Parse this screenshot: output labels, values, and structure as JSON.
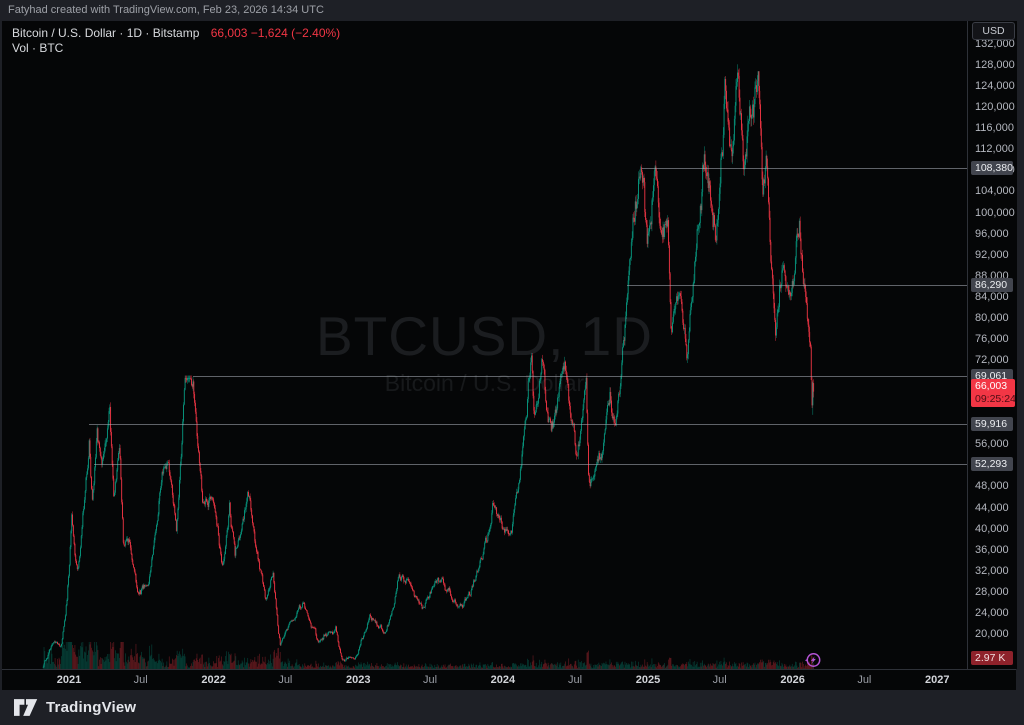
{
  "attribution": {
    "text": "Fatyhad created with TradingView.com, Feb 23, 2026 14:34 UTC"
  },
  "legend": {
    "symbol_text": "Bitcoin / U.S. Dollar · 1D · Bitstamp",
    "price_text": "66,003  −1,624 (−2.40%)",
    "vol_text": "Vol · BTC"
  },
  "watermark": {
    "title": "BTCUSD, 1D",
    "subtitle": "Bitcoin / U.S. Dollar"
  },
  "price_axis": {
    "currency": "USD"
  },
  "footer": {
    "brand": "TradingView"
  },
  "chart_data": {
    "type": "candlestick",
    "symbol": "BTCUSD",
    "name": "Bitcoin / U.S. Dollar",
    "interval": "1D",
    "exchange": "Bitstamp",
    "x_domain": [
      "2020-07-16",
      "2027-03-17"
    ],
    "y_domain": [
      13350,
      136366
    ],
    "bars_start": "2020-10-28",
    "bar_step_days": 2,
    "colors": {
      "up": "#089981",
      "down": "#f23645",
      "vol_up": "rgba(8,153,129,0.38)",
      "vol_down": "rgba(242,54,69,0.38)"
    },
    "price_ticks": [
      132000,
      128000,
      124000,
      120000,
      116000,
      112000,
      108000,
      104000,
      100000,
      96000,
      92000,
      88000,
      84000,
      80000,
      76000,
      72000,
      68000,
      64000,
      60000,
      56000,
      52000,
      48000,
      44000,
      40000,
      36000,
      32000,
      28000,
      24000,
      20000
    ],
    "time_ticks": [
      {
        "d": "2021-01-01",
        "l": "2021",
        "b": 1
      },
      {
        "d": "2021-07-01",
        "l": "Jul",
        "b": 0
      },
      {
        "d": "2022-01-01",
        "l": "2022",
        "b": 1
      },
      {
        "d": "2022-07-01",
        "l": "Jul",
        "b": 0
      },
      {
        "d": "2023-01-01",
        "l": "2023",
        "b": 1
      },
      {
        "d": "2023-07-01",
        "l": "Jul",
        "b": 0
      },
      {
        "d": "2024-01-01",
        "l": "2024",
        "b": 1
      },
      {
        "d": "2024-07-01",
        "l": "Jul",
        "b": 0
      },
      {
        "d": "2025-01-01",
        "l": "2025",
        "b": 1
      },
      {
        "d": "2025-07-01",
        "l": "Jul",
        "b": 0
      },
      {
        "d": "2026-01-01",
        "l": "2026",
        "b": 1
      },
      {
        "d": "2026-07-01",
        "l": "Jul",
        "b": 0
      },
      {
        "d": "2027-01-01",
        "l": "2027",
        "b": 1
      }
    ],
    "horizontal_rays": [
      {
        "price": 108380,
        "label": "108,380",
        "start": "2024-12-17"
      },
      {
        "price": 86290,
        "label": "86,290",
        "start": "2024-11-10"
      },
      {
        "price": 69061,
        "label": "69,061",
        "start": "2021-11-10"
      },
      {
        "price": 59916,
        "label": "59,916",
        "start": "2021-02-20"
      },
      {
        "price": 52293,
        "label": "52,293",
        "start": "2021-03-05"
      }
    ],
    "last": {
      "date": "2026-02-23",
      "price": 66003,
      "label": "66,003",
      "countdown": "09:25:24",
      "change": -1624,
      "change_pct": -2.4
    },
    "volume": {
      "label": "2.97 K"
    },
    "price_anchors": [
      [
        "2020-10-28",
        13750
      ],
      [
        "2020-11-06",
        15550
      ],
      [
        "2020-11-24",
        19150
      ],
      [
        "2020-12-11",
        17800
      ],
      [
        "2020-12-27",
        26500
      ],
      [
        "2021-01-08",
        41000
      ],
      [
        "2021-01-22",
        31000
      ],
      [
        "2021-02-21",
        58300
      ],
      [
        "2021-03-01",
        45200
      ],
      [
        "2021-03-13",
        61600
      ],
      [
        "2021-03-25",
        51400
      ],
      [
        "2021-04-14",
        64800
      ],
      [
        "2021-04-25",
        47800
      ],
      [
        "2021-05-09",
        58200
      ],
      [
        "2021-05-19",
        36800
      ],
      [
        "2021-06-02",
        39300
      ],
      [
        "2021-06-22",
        29000
      ],
      [
        "2021-07-20",
        29600
      ],
      [
        "2021-08-23",
        50300
      ],
      [
        "2021-09-07",
        52700
      ],
      [
        "2021-09-29",
        41100
      ],
      [
        "2021-10-20",
        66900
      ],
      [
        "2021-11-10",
        69061
      ],
      [
        "2021-12-04",
        46500
      ],
      [
        "2022-01-02",
        47300
      ],
      [
        "2022-01-24",
        33500
      ],
      [
        "2022-02-10",
        45100
      ],
      [
        "2022-02-24",
        34500
      ],
      [
        "2022-03-29",
        47400
      ],
      [
        "2022-05-12",
        27000
      ],
      [
        "2022-05-31",
        31800
      ],
      [
        "2022-06-18",
        17800
      ],
      [
        "2022-07-08",
        21500
      ],
      [
        "2022-08-14",
        24900
      ],
      [
        "2022-09-21",
        18600
      ],
      [
        "2022-11-05",
        21200
      ],
      [
        "2022-11-21",
        15600
      ],
      [
        "2022-12-30",
        16550
      ],
      [
        "2023-01-29",
        23700
      ],
      [
        "2023-03-10",
        19900
      ],
      [
        "2023-04-14",
        30700
      ],
      [
        "2023-06-15",
        25000
      ],
      [
        "2023-07-13",
        31400
      ],
      [
        "2023-09-11",
        25100
      ],
      [
        "2023-10-16",
        28500
      ],
      [
        "2023-12-08",
        44100
      ],
      [
        "2024-01-23",
        39200
      ],
      [
        "2024-03-13",
        73500
      ],
      [
        "2024-03-20",
        61500
      ],
      [
        "2024-04-08",
        71800
      ],
      [
        "2024-05-01",
        56800
      ],
      [
        "2024-06-06",
        71300
      ],
      [
        "2024-07-05",
        54300
      ],
      [
        "2024-07-29",
        69600
      ],
      [
        "2024-08-05",
        49600
      ],
      [
        "2024-09-06",
        52900
      ],
      [
        "2024-09-27",
        65800
      ],
      [
        "2024-10-10",
        59400
      ],
      [
        "2024-11-12",
        88000
      ],
      [
        "2024-11-22",
        98800
      ],
      [
        "2024-12-05",
        102800
      ],
      [
        "2024-12-17",
        108380
      ],
      [
        "2024-12-30",
        92300
      ],
      [
        "2025-01-20",
        108100
      ],
      [
        "2025-02-03",
        96500
      ],
      [
        "2025-02-21",
        98800
      ],
      [
        "2025-02-28",
        79000
      ],
      [
        "2025-03-24",
        88200
      ],
      [
        "2025-04-09",
        75000
      ],
      [
        "2025-05-22",
        111600
      ],
      [
        "2025-06-22",
        99000
      ],
      [
        "2025-07-14",
        122800
      ],
      [
        "2025-08-01",
        113500
      ],
      [
        "2025-08-14",
        124200
      ],
      [
        "2025-09-01",
        108200
      ],
      [
        "2025-09-18",
        117000
      ],
      [
        "2025-10-06",
        126100
      ],
      [
        "2025-10-17",
        105500
      ],
      [
        "2025-10-27",
        114800
      ],
      [
        "2025-11-21",
        82000
      ],
      [
        "2025-12-08",
        92500
      ],
      [
        "2025-12-20",
        86500
      ],
      [
        "2026-01-06",
        89500
      ],
      [
        "2026-01-18",
        97200
      ],
      [
        "2026-02-06",
        79500
      ],
      [
        "2026-02-17",
        69500
      ],
      [
        "2026-02-21",
        63200
      ],
      [
        "2026-02-23",
        66003
      ]
    ]
  }
}
